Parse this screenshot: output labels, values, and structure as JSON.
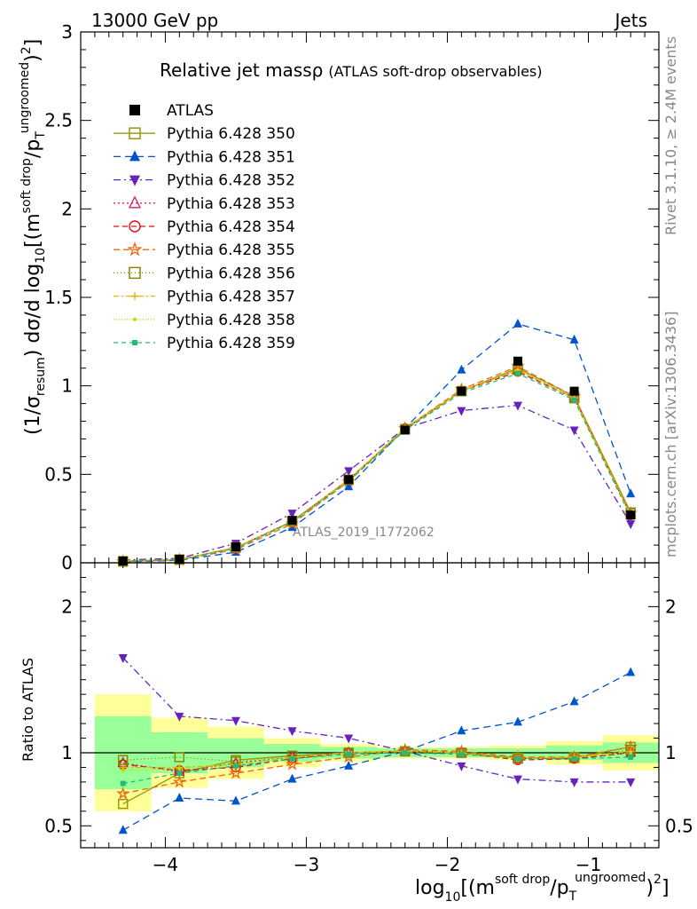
{
  "header": {
    "left": "13000 GeV pp",
    "right": "Jets"
  },
  "side_labels": {
    "rivet": "Rivet 3.1.10, ≥ 2.4M events",
    "mcplots": "mcplots.cern.ch [arXiv:1306.3436]"
  },
  "plot_title_main": "Relative jet mass",
  "plot_title_rho": "ρ",
  "plot_title_sub": "(ATLAS soft-drop observables)",
  "watermark": "ATLAS_2019_I1772062",
  "colors": {
    "band_green": "#99ff99",
    "band_yellow": "#ffff99"
  },
  "chart_data": {
    "type": "line",
    "x_log_scale_note": "",
    "xlim": [
      -4.6,
      -0.5
    ],
    "xticks": [
      -4,
      -3,
      -2,
      -1
    ],
    "xtick_labels": [
      "−4",
      "−3",
      "−2",
      "−1"
    ],
    "main": {
      "ylim": [
        0,
        3
      ],
      "yticks": [
        0,
        0.5,
        1,
        1.5,
        2,
        2.5,
        3
      ],
      "ytick_labels": [
        "0",
        "0.5",
        "1",
        "1.5",
        "2",
        "2.5",
        "3"
      ]
    },
    "ratio": {
      "ylabel": "Ratio to ATLAS",
      "ylim": [
        0.35,
        2.3
      ],
      "yticks": [
        0.5,
        1,
        2
      ],
      "ytick_labels": [
        "0.5",
        "1",
        "2"
      ]
    },
    "x": [
      -4.3,
      -3.9,
      -3.5,
      -3.1,
      -2.7,
      -2.3,
      -1.9,
      -1.5,
      -1.1,
      -0.7
    ],
    "bin_edges": [
      -4.5,
      -4.1,
      -3.7,
      -3.3,
      -2.9,
      -2.5,
      -2.1,
      -1.7,
      -1.3,
      -0.9,
      -0.5
    ],
    "band_green_half": [
      0.25,
      0.14,
      0.1,
      0.06,
      0.04,
      0.03,
      0.03,
      0.03,
      0.05,
      0.07
    ],
    "band_yellow_half": [
      0.4,
      0.24,
      0.18,
      0.1,
      0.06,
      0.04,
      0.04,
      0.05,
      0.08,
      0.12
    ],
    "series": [
      {
        "name": "ATLAS",
        "color": "#000000",
        "marker": "square-filled",
        "dash": "none",
        "values": [
          0.01,
          0.02,
          0.09,
          0.24,
          0.47,
          0.75,
          0.97,
          1.14,
          0.97,
          0.27
        ]
      },
      {
        "name": "Pythia 6.428 350",
        "color": "#999900",
        "marker": "square-open",
        "dash": "solid",
        "values": [
          0.0065,
          0.017,
          0.085,
          0.235,
          0.47,
          0.755,
          0.97,
          1.1,
          0.94,
          0.285
        ],
        "ratio": [
          0.65,
          0.86,
          0.95,
          0.98,
          1.0,
          1.01,
          1.0,
          0.965,
          0.965,
          1.04
        ]
      },
      {
        "name": "Pythia 6.428 351",
        "color": "#0055cc",
        "marker": "triangle-up",
        "dash": "8,5",
        "values": [
          0.0047,
          0.014,
          0.06,
          0.2,
          0.43,
          0.76,
          1.09,
          1.35,
          1.26,
          0.39
        ],
        "ratio": [
          0.47,
          0.69,
          0.67,
          0.82,
          0.91,
          1.01,
          1.15,
          1.21,
          1.35,
          1.55
        ]
      },
      {
        "name": "Pythia 6.428 352",
        "color": "#6622bb",
        "marker": "triangle-down",
        "dash": "8,4,2,4",
        "values": [
          0.0165,
          0.025,
          0.11,
          0.28,
          0.52,
          0.76,
          0.86,
          0.89,
          0.75,
          0.22
        ],
        "ratio": [
          1.65,
          1.25,
          1.22,
          1.15,
          1.1,
          1.01,
          0.91,
          0.82,
          0.8,
          0.8
        ]
      },
      {
        "name": "Pythia 6.428 353",
        "color": "#cc2266",
        "marker": "triangle-up-open",
        "dash": "2,3",
        "values": [
          0.0093,
          0.018,
          0.087,
          0.23,
          0.47,
          0.76,
          0.97,
          1.09,
          0.93,
          0.27
        ],
        "ratio": [
          0.93,
          0.87,
          0.93,
          0.97,
          1.0,
          1.01,
          1.0,
          0.96,
          0.96,
          1.0
        ]
      },
      {
        "name": "Pythia 6.428 354",
        "color": "#dd1111",
        "marker": "circle-open",
        "dash": "6,4",
        "values": [
          0.0092,
          0.018,
          0.085,
          0.23,
          0.47,
          0.76,
          0.97,
          1.08,
          0.93,
          0.27
        ],
        "ratio": [
          0.92,
          0.88,
          0.9,
          0.96,
          1.0,
          1.01,
          1.0,
          0.95,
          0.96,
          1.0
        ]
      },
      {
        "name": "Pythia 6.428 355",
        "color": "#ee6611",
        "marker": "star-open",
        "dash": "7,4",
        "values": [
          0.0072,
          0.016,
          0.075,
          0.22,
          0.46,
          0.76,
          0.98,
          1.11,
          0.94,
          0.28
        ],
        "ratio": [
          0.72,
          0.8,
          0.86,
          0.92,
          0.97,
          1.02,
          1.01,
          0.97,
          0.97,
          1.04
        ]
      },
      {
        "name": "Pythia 6.428 356",
        "color": "#888800",
        "marker": "square-open",
        "dash": "1,3",
        "values": [
          0.0095,
          0.019,
          0.088,
          0.235,
          0.47,
          0.755,
          0.97,
          1.09,
          0.93,
          0.28
        ],
        "ratio": [
          0.95,
          0.97,
          0.94,
          0.98,
          1.0,
          1.01,
          1.0,
          0.96,
          0.97,
          1.02
        ]
      },
      {
        "name": "Pythia 6.428 357",
        "color": "#ddbb00",
        "marker": "plus",
        "dash": "6,3,2,3",
        "values": [
          0.009,
          0.018,
          0.087,
          0.23,
          0.47,
          0.76,
          0.97,
          1.09,
          0.93,
          0.27
        ],
        "ratio": [
          0.9,
          0.9,
          0.92,
          0.97,
          1.0,
          1.01,
          1.0,
          0.96,
          0.97,
          1.01
        ]
      },
      {
        "name": "Pythia 6.428 358",
        "color": "#bbdd00",
        "marker": "dot",
        "dash": "1,2",
        "values": [
          0.0088,
          0.018,
          0.086,
          0.23,
          0.47,
          0.76,
          0.97,
          1.09,
          0.93,
          0.27
        ],
        "ratio": [
          0.88,
          0.89,
          0.92,
          0.97,
          1.0,
          1.01,
          1.0,
          0.96,
          0.97,
          1.0
        ]
      },
      {
        "name": "Pythia 6.428 359",
        "color": "#22bb77",
        "marker": "square-small",
        "dash": "5,4",
        "values": [
          0.0079,
          0.017,
          0.082,
          0.23,
          0.46,
          0.75,
          0.96,
          1.07,
          0.92,
          0.26
        ],
        "ratio": [
          0.79,
          0.86,
          0.91,
          0.96,
          0.99,
          1.0,
          0.99,
          0.96,
          0.96,
          0.97
        ]
      }
    ]
  }
}
